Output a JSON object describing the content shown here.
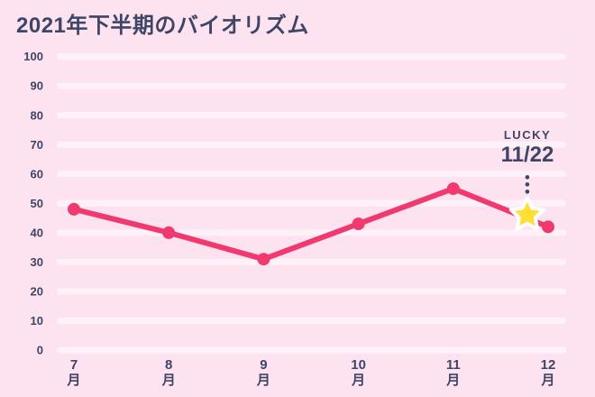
{
  "title": "2021年下半期のバイオリズム",
  "chart_data": {
    "type": "line",
    "title": "2021年下半期のバイオリズム",
    "categories": [
      "7",
      "8",
      "9",
      "10",
      "11",
      "12"
    ],
    "x_unit": "月",
    "values": [
      48,
      40,
      31,
      43,
      55,
      42
    ],
    "ylim": [
      0,
      100
    ],
    "ytick_step": 10,
    "grid": "horizontal-rounded-bars",
    "legend": "none",
    "annotation": {
      "label": "LUCKY",
      "date": "11/22",
      "x_index": 4.78,
      "value": 46,
      "marker": "star"
    }
  },
  "colors": {
    "background": "#fce3ef",
    "gridline": "rgba(255,255,255,0.55)",
    "line": "#f1386f",
    "text": "#3f4567",
    "star_fill": "#ffdf35",
    "star_stroke": "#ffffff"
  }
}
